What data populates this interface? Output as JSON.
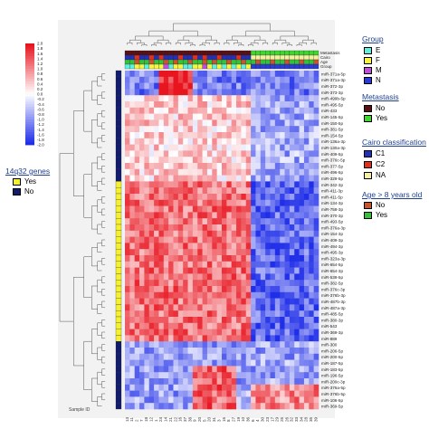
{
  "chart_data": {
    "type": "heatmap",
    "colorbar": {
      "ticks": [
        "2.0",
        "1.8",
        "1.6",
        "1.4",
        "1.2",
        "1.0",
        "0.8",
        "0.6",
        "0.4",
        "0.2",
        "0.0",
        "-0.2",
        "-0.4",
        "-0.6",
        "-0.8",
        "-1.0",
        "-1.2",
        "-1.4",
        "-1.6",
        "-1.8",
        "-2.0"
      ],
      "low_color": "#1f2ee8",
      "mid_color": "#ffffff",
      "high_color": "#e8141e"
    },
    "column_annotation_labels": [
      "Metastasis",
      "Cairo",
      "Age",
      "Group"
    ],
    "sample_axis_label": "Sample ID",
    "row_labels": [
      "miR-371a-5p",
      "miR-371a-3p",
      "miR-372-3p",
      "miR-373-3p",
      "miR-499b-5p",
      "miR-495-5p",
      "miR-433",
      "miR-145-5p",
      "miR-150-5p",
      "miR-381-5p",
      "miR-154-5p",
      "miR-136a-3p",
      "miR-130a-3p",
      "miR-409-5p",
      "miR-376c-5p",
      "miR-377-5p",
      "miR-496-5p",
      "miR-329-5p",
      "miR-342-3p",
      "miR-411-3p",
      "miR-411-5p",
      "miR-134-3p",
      "miR-758-3p",
      "miR-370-3p",
      "miR-493-5p",
      "miR-376a-3p",
      "miR-154-3p",
      "miR-409-3p",
      "miR-494-3p",
      "miR-495-3p",
      "miR-323a-3p",
      "miR-654-5p",
      "miR-654-3p",
      "miR-539-5p",
      "miR-382-5p",
      "miR-376c-3p",
      "miR-376b-3p",
      "miR-487b-3p",
      "miR-487a-3p",
      "miR-485-5p",
      "miR-380-3p",
      "miR-543",
      "miR-369-3p",
      "miR-889",
      "miR-300",
      "miR-206-5p",
      "miR-200-5p",
      "miR-187-5p",
      "miR-183-5p",
      "miR-196-5p",
      "miR-200c-3p",
      "miR-376a-5p",
      "miR-376b-5p",
      "miR-106-5p",
      "miR-369-5p"
    ],
    "row_14q32": [
      "No",
      "No",
      "No",
      "No",
      "No",
      "No",
      "No",
      "No",
      "No",
      "No",
      "No",
      "No",
      "No",
      "No",
      "No",
      "No",
      "No",
      "No",
      "Yes",
      "Yes",
      "Yes",
      "Yes",
      "Yes",
      "Yes",
      "Yes",
      "Yes",
      "Yes",
      "Yes",
      "Yes",
      "Yes",
      "Yes",
      "Yes",
      "Yes",
      "Yes",
      "Yes",
      "Yes",
      "Yes",
      "Yes",
      "Yes",
      "Yes",
      "Yes",
      "Yes",
      "Yes",
      "Yes",
      "No",
      "No",
      "No",
      "No",
      "No",
      "No",
      "No",
      "No",
      "No",
      "No",
      "No"
    ],
    "sample_ids": [
      "13",
      "11",
      "2",
      "7",
      "18",
      "12",
      "1",
      "24",
      "14",
      "21",
      "22",
      "16",
      "37",
      "38",
      "9",
      "20",
      "5",
      "20",
      "31",
      "3",
      "15",
      "8",
      "27",
      "19",
      "10",
      "36",
      "6",
      "4",
      "30",
      "23",
      "17",
      "29",
      "25",
      "26",
      "32",
      "33",
      "34",
      "28",
      "35",
      "39"
    ],
    "group": [
      "E",
      "E",
      "F",
      "F",
      "E",
      "F",
      "F",
      "F",
      "M",
      "E",
      "F",
      "F",
      "E",
      "E",
      "F",
      "F",
      "M",
      "F",
      "E",
      "F",
      "E",
      "F",
      "E",
      "F",
      "E",
      "F",
      "N",
      "N",
      "N",
      "N",
      "N",
      "N",
      "N",
      "N",
      "N",
      "N",
      "N",
      "N",
      "N",
      "N"
    ],
    "metastasis": [
      "No",
      "No",
      "No",
      "No",
      "No",
      "No",
      "No",
      "No",
      "No",
      "No",
      "No",
      "No",
      "No",
      "No",
      "No",
      "No",
      "No",
      "No",
      "No",
      "No",
      "No",
      "No",
      "No",
      "No",
      "No",
      "No",
      "Yes",
      "Yes",
      "Yes",
      "Yes",
      "Yes",
      "Yes",
      "Yes",
      "Yes",
      "Yes",
      "Yes",
      "Yes",
      "Yes",
      "Yes",
      "Yes"
    ],
    "cairo": [
      "C1",
      "C1",
      "C2",
      "C1",
      "C1",
      "C2",
      "C1",
      "C2",
      "C1",
      "C1",
      "C1",
      "C2",
      "C1",
      "C1",
      "C2",
      "C1",
      "C2",
      "C1",
      "C1",
      "C2",
      "C1",
      "C1",
      "C1",
      "C2",
      "C1",
      "C1",
      "NA",
      "NA",
      "NA",
      "NA",
      "NA",
      "NA",
      "NA",
      "NA",
      "NA",
      "NA",
      "NA",
      "NA",
      "NA",
      "NA"
    ],
    "age_over_8": [
      "Yes",
      "Yes",
      "No",
      "Yes",
      "Yes",
      "No",
      "Yes",
      "Yes",
      "No",
      "Yes",
      "No",
      "Yes",
      "Yes",
      "No",
      "Yes",
      "Yes",
      "No",
      "Yes",
      "No",
      "Yes",
      "Yes",
      "No",
      "Yes",
      "Yes",
      "No",
      "Yes",
      "Yes",
      "No",
      "Yes",
      "Yes",
      "No",
      "Yes",
      "Yes",
      "No",
      "Yes",
      "Yes",
      "No",
      "Yes",
      "Yes",
      "No"
    ],
    "pattern_blocks": [
      {
        "rows": [
          0,
          3
        ],
        "cols": [
          0,
          39
        ],
        "value": -1.2
      },
      {
        "rows": [
          0,
          3
        ],
        "cols": [
          7,
          13
        ],
        "value": 1.8
      },
      {
        "rows": [
          4,
          17
        ],
        "cols": [
          0,
          25
        ],
        "value": 0.4
      },
      {
        "rows": [
          4,
          17
        ],
        "cols": [
          26,
          39
        ],
        "value": -0.8
      },
      {
        "rows": [
          18,
          43
        ],
        "cols": [
          0,
          25
        ],
        "value": 1.2
      },
      {
        "rows": [
          18,
          43
        ],
        "cols": [
          26,
          39
        ],
        "value": -1.4
      },
      {
        "rows": [
          44,
          54
        ],
        "cols": [
          0,
          39
        ],
        "value": -0.9
      },
      {
        "rows": [
          48,
          54
        ],
        "cols": [
          14,
          22
        ],
        "value": 1.3
      },
      {
        "rows": [
          51,
          54
        ],
        "cols": [
          26,
          39
        ],
        "value": 1.0
      }
    ]
  },
  "legend": {
    "group": {
      "title": "Group",
      "items": [
        {
          "label": "E",
          "color": "#5ff0e0"
        },
        {
          "label": "F",
          "color": "#f5f542"
        },
        {
          "label": "M",
          "color": "#c24be0"
        },
        {
          "label": "N",
          "color": "#2a3bd6"
        }
      ]
    },
    "metastasis": {
      "title": "Metastasis",
      "items": [
        {
          "label": "No",
          "color": "#5a0f12"
        },
        {
          "label": "Yes",
          "color": "#3fd62f"
        }
      ]
    },
    "cairo": {
      "title": "Cairo classification",
      "items": [
        {
          "label": "C1",
          "color": "#2330b8"
        },
        {
          "label": "C2",
          "color": "#e0301e"
        },
        {
          "label": "NA",
          "color": "#f5f0a0"
        }
      ]
    },
    "age": {
      "title": "Age > 8 years old",
      "items": [
        {
          "label": "No",
          "color": "#c5562e"
        },
        {
          "label": "Yes",
          "color": "#35c23a"
        }
      ]
    },
    "gene14q32": {
      "title": "14q32 genes",
      "items": [
        {
          "label": "Yes",
          "color": "#f5f032"
        },
        {
          "label": "No",
          "color": "#121c6e"
        }
      ]
    }
  }
}
